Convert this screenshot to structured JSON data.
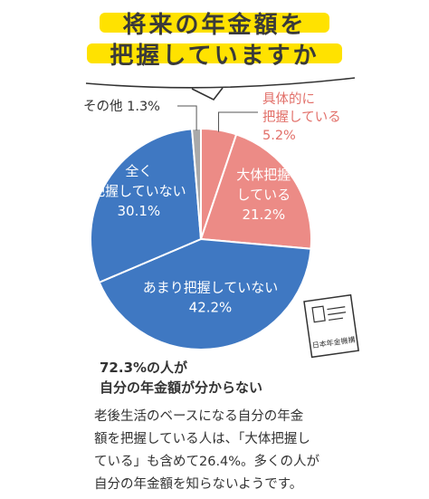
{
  "title": {
    "line1": "将来の年金額を",
    "line2": "把握していますか"
  },
  "colors": {
    "detailed": "#ec8b86",
    "rough": "#ec8b86",
    "not_much": "#3f78c2",
    "not_at_all": "#3f78c2",
    "other": "#a9a9a9",
    "highlight": "#ffe200",
    "label_coral": "#e2706a"
  },
  "chart_data": {
    "type": "pie",
    "title": "将来の年金額を把握していますか",
    "slices": [
      {
        "key": "detailed",
        "label_lines": [
          "具体的に",
          "把握している"
        ],
        "value": 5.2,
        "value_label": "5.2%",
        "color": "#ec8b86"
      },
      {
        "key": "rough",
        "label_lines": [
          "大体把握",
          "している"
        ],
        "value": 21.2,
        "value_label": "21.2%",
        "color": "#ec8b86"
      },
      {
        "key": "not_much",
        "label_lines": [
          "あまり把握していない"
        ],
        "value": 42.2,
        "value_label": "42.2%",
        "color": "#3f78c2"
      },
      {
        "key": "not_at_all",
        "label_lines": [
          "全く",
          "把握していない"
        ],
        "value": 30.1,
        "value_label": "30.1%",
        "color": "#3f78c2"
      },
      {
        "key": "other",
        "label_lines": [
          "その他"
        ],
        "value": 1.3,
        "value_label": "1.3%",
        "color": "#a9a9a9"
      }
    ],
    "start_angle": "12 o'clock",
    "direction": "clockwise"
  },
  "card": {
    "text": "日本年金機構",
    "icon": "pension-book-icon"
  },
  "summary": {
    "line1": "72.3%の人が",
    "line2": "自分の年金額が分からない"
  },
  "body": {
    "lines": [
      "老後生活のベースになる自分の年金",
      "額を把握している人は、「大体把握し",
      "ている」も含めて26.4%。多くの人が",
      "自分の年金額を知らないようです。"
    ]
  }
}
